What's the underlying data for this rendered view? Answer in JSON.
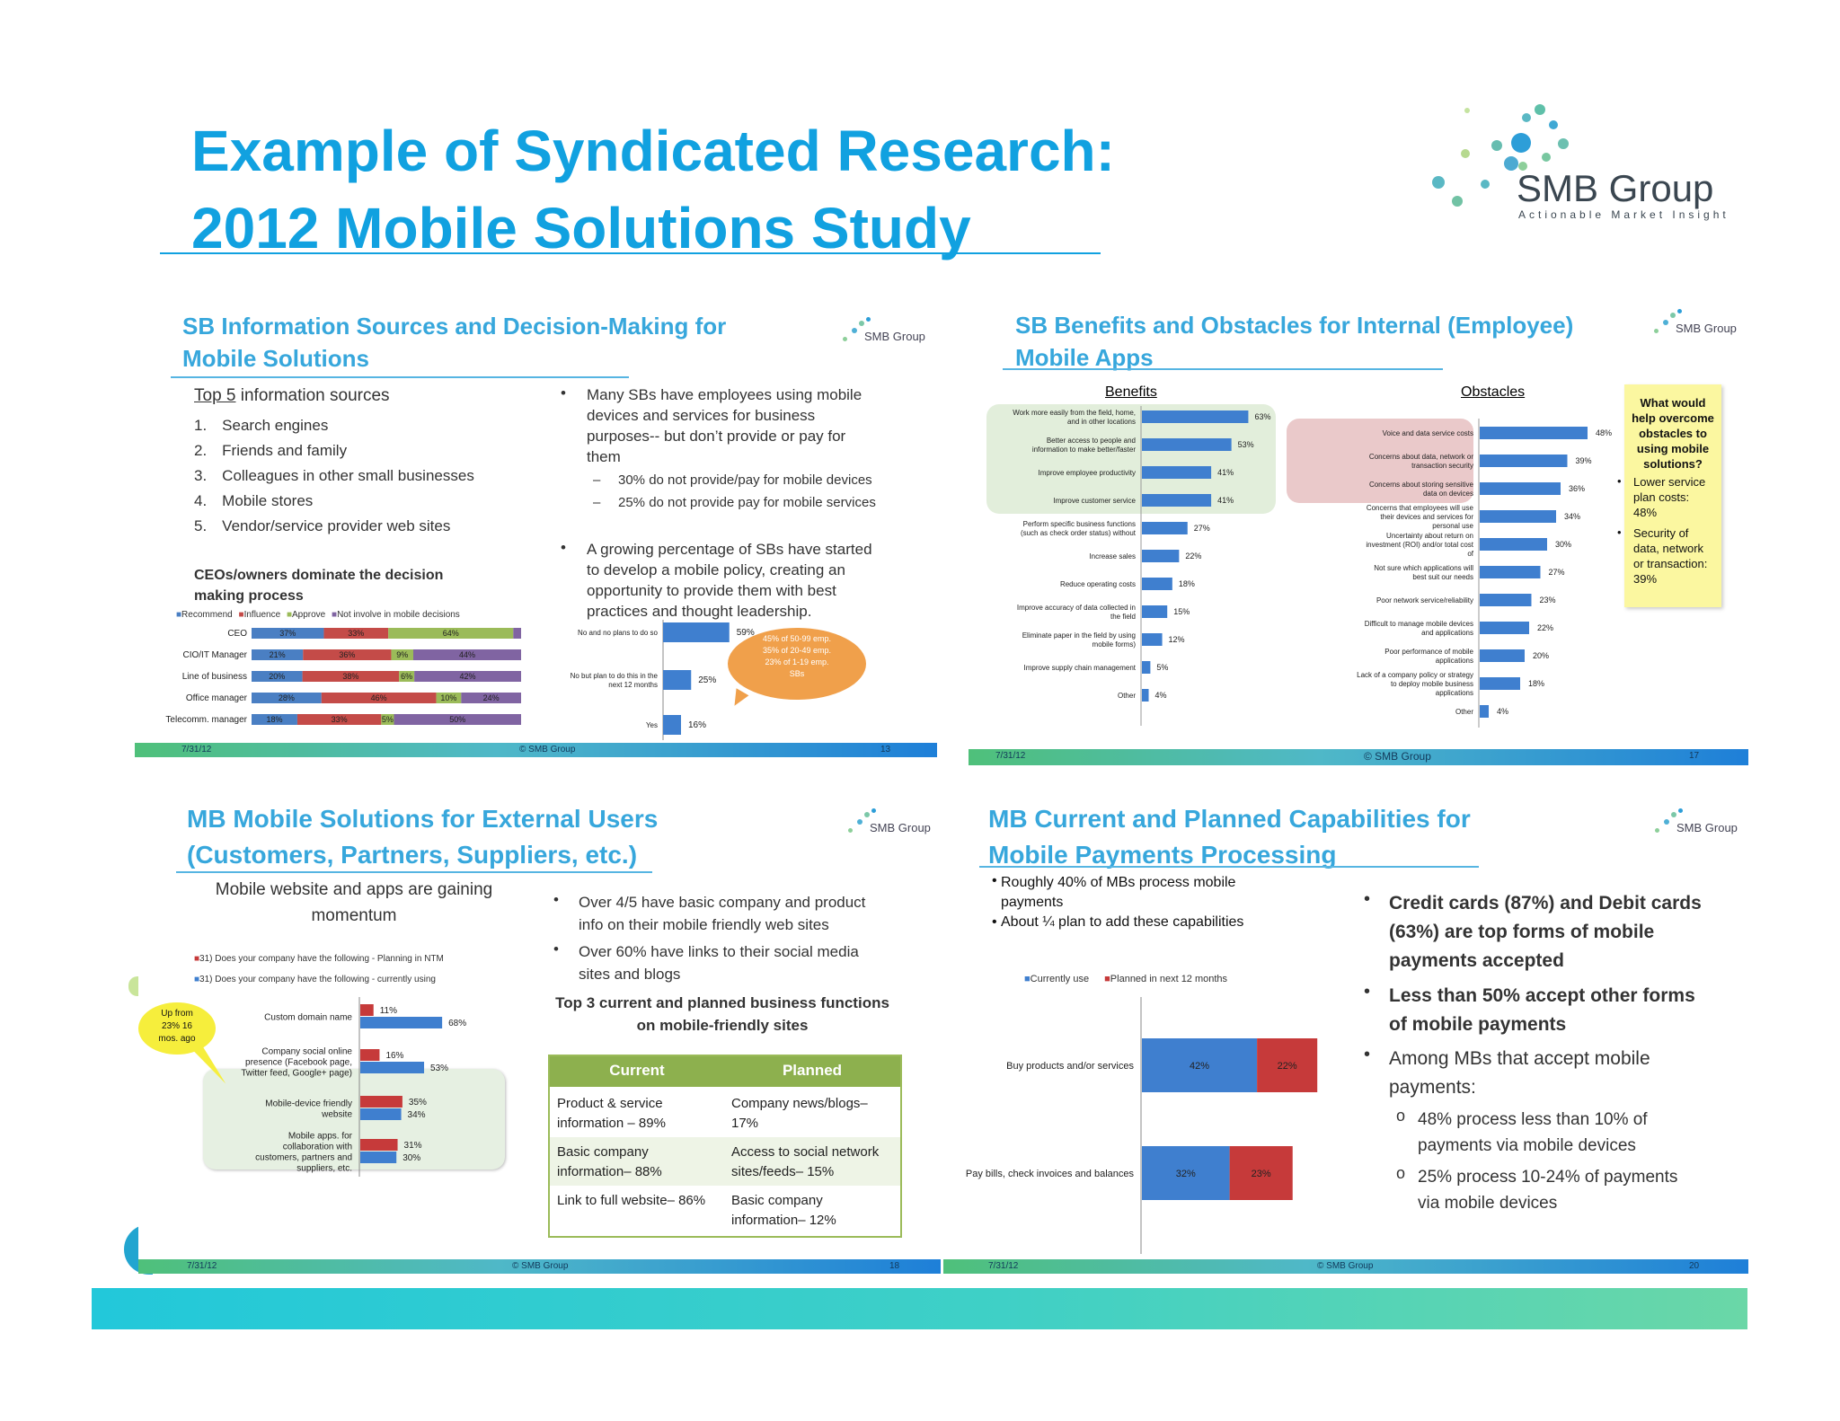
{
  "title": {
    "line1": "Example of Syndicated Research:",
    "line2": "2012 Mobile Solutions Study"
  },
  "logo": {
    "name": "SMB Group",
    "tagline": "Actionable Market Insight"
  },
  "slide1": {
    "title1": "SB Information Sources and Decision-Making for",
    "title2": "Mobile Solutions",
    "logo": "SMB Group",
    "list_heading_underlined": "Top 5",
    "list_heading_rest": " information sources",
    "list": [
      "1. Search engines",
      "2. Friends and family",
      "3. Colleagues in other small businesses",
      "4. Mobile stores",
      "5. Vendor/service provider web sites"
    ],
    "bullet1": [
      "Many SBs have employees using mobile",
      "devices and services for business",
      "purposes-- but don’t provide or pay for",
      "them"
    ],
    "sub1": "30% do not provide/pay for mobile devices",
    "sub2": "25% do not provide pay for mobile services",
    "bullet2": [
      "A growing percentage of SBs have started",
      "to develop a mobile policy, creating an",
      "opportunity to provide them with best",
      "practices and thought leadership."
    ],
    "ceo_heading1": "CEOs/owners dominate the decision",
    "ceo_heading2": "making process",
    "legend": [
      "Recommend",
      "Influence",
      "Approve",
      "Not involve in mobile decisions"
    ],
    "callout": [
      "45% of 50-99 emp.",
      "35% of 20-49 emp.",
      "23% of 1-19 emp.",
      "SBs"
    ],
    "footer_date": "7/31/12",
    "footer_center": "© SMB Group",
    "footer_page": "13"
  },
  "slide2": {
    "title1": "SB Benefits and Obstacles for Internal (Employee)",
    "title2": "Mobile Apps",
    "logo": "SMB Group",
    "benefits_heading": "Benefits",
    "obstacles_heading": "Obstacles",
    "note": [
      "What would",
      "help overcome",
      "obstacles to",
      "using mobile",
      "solutions?"
    ],
    "note_b1": [
      "Lower service",
      "plan costs:",
      "48%"
    ],
    "note_b2": [
      "Security of",
      "data, network",
      "or transaction:",
      "39%"
    ],
    "footer_date": "7/31/12",
    "footer_center": "© SMB Group",
    "footer_page": "17"
  },
  "slide3": {
    "title1": "MB Mobile Solutions for External Users",
    "title2": "(Customers, Partners, Suppliers, etc.)",
    "logo": "SMB Group",
    "subtitle1": "Mobile website and apps are gaining",
    "subtitle2": "momentum",
    "legend": [
      "31) Does your company have the following - Planning in NTM",
      "31) Does your company have the following - currently using"
    ],
    "callout": [
      "Up from",
      "23% 16",
      "mos. ago"
    ],
    "bullet1": [
      "Over 4/5 have basic company and product",
      "info on their mobile friendly web sites"
    ],
    "bullet2": [
      "Over 60% have links to their social media",
      "sites and blogs"
    ],
    "top3_1": "Top 3 current and planned business functions",
    "top3_2": "on mobile-friendly sites",
    "table": {
      "headers": [
        "Current",
        "Planned"
      ],
      "rows": [
        [
          [
            "Product & service",
            "information – 89%"
          ],
          [
            "Company news/blogs–",
            "17%"
          ]
        ],
        [
          [
            "Basic company",
            "information– 88%"
          ],
          [
            "Access to social network",
            "sites/feeds– 15%"
          ]
        ],
        [
          [
            "Link to full website– 86%"
          ],
          [
            "Basic company",
            "information– 12%"
          ]
        ]
      ]
    },
    "footer_date": "7/31/12",
    "footer_center": "© SMB Group",
    "footer_page": "18"
  },
  "slide4": {
    "title1": "MB Current and Planned Capabilities for",
    "title2": "Mobile Payments Processing",
    "logo": "SMB Group",
    "bullet1": [
      "Roughly 40% of MBs process mobile",
      "payments"
    ],
    "bullet2": [
      "About ¼ plan to add these capabilities"
    ],
    "legend": [
      "Currently use",
      "Planned in next 12 months"
    ],
    "right1": [
      "Credit cards (87%) and Debit cards",
      "(63%) are top forms of mobile",
      "payments accepted"
    ],
    "right2": [
      "Less than 50% accept other forms",
      "of mobile payments"
    ],
    "right3": [
      "Among MBs that accept mobile",
      "payments:"
    ],
    "sub1": [
      "48% process less than 10% of",
      "payments via mobile devices"
    ],
    "sub2": [
      "25% process 10-24% of payments",
      "via mobile devices"
    ],
    "footer_date": "7/31/12",
    "footer_center": "© SMB Group",
    "footer_page": "20"
  },
  "chart_data": [
    {
      "type": "bar",
      "orientation": "horizontal",
      "stacked": true,
      "categories": [
        "CEO",
        "CIO/IT Manager",
        "Line of business",
        "Office manager",
        "Telecomm. manager"
      ],
      "series": [
        {
          "name": "Recommend",
          "values": [
            37,
            21,
            20,
            28,
            18
          ],
          "color": "#4a7fc3"
        },
        {
          "name": "Influence",
          "values": [
            33,
            36,
            38,
            46,
            33
          ],
          "color": "#c44b48"
        },
        {
          "name": "Approve",
          "values": [
            64,
            9,
            6,
            10,
            5
          ],
          "color": "#9bbb59"
        },
        {
          "name": "Not involve in mobile decisions",
          "values": [
            4,
            44,
            42,
            24,
            50
          ],
          "color": "#8064a2"
        }
      ]
    },
    {
      "type": "bar",
      "orientation": "horizontal",
      "categories": [
        "No and no plans to do so",
        "No but plan to do this in the next 12 months",
        "Yes"
      ],
      "values": [
        59,
        25,
        16
      ]
    },
    {
      "type": "bar",
      "orientation": "horizontal",
      "title": "Benefits",
      "categories": [
        "Work more easily from the field, home, and in other locations",
        "Better access to people and information to make better/faster",
        "Improve employee productivity",
        "Improve customer service",
        "Perform specific business functions (such as check order status) without",
        "Increase sales",
        "Reduce operating costs",
        "Improve accuracy of data collected in the field",
        "Eliminate paper in the field by using mobile forms)",
        "Improve supply chain management",
        "Other"
      ],
      "values": [
        63,
        53,
        41,
        41,
        27,
        22,
        18,
        15,
        12,
        5,
        4
      ]
    },
    {
      "type": "bar",
      "orientation": "horizontal",
      "title": "Obstacles",
      "categories": [
        "Voice and data service costs",
        "Concerns about data, network or transaction security",
        "Concerns about storing sensitive data on devices",
        "Concerns that employees will use their devices and services for personal use",
        "Uncertainty about return on investment (ROI) and/or total cost of",
        "Not sure which applications will best suit our needs",
        "Poor network service/reliability",
        "Difficult to manage mobile devices and applications",
        "Poor performance of mobile applications",
        "Lack of a company policy or strategy to deploy mobile business applications",
        "Other"
      ],
      "values": [
        48,
        39,
        36,
        34,
        30,
        27,
        23,
        22,
        20,
        18,
        4
      ]
    },
    {
      "type": "bar",
      "orientation": "horizontal",
      "categories": [
        "Custom domain name",
        "Company social online presence (Facebook page, Twitter feed, Google+ page)",
        "Mobile-device friendly website",
        "Mobile apps. for collaboration with customers, partners and suppliers, etc."
      ],
      "series": [
        {
          "name": "31) Does your company have the following - Planning in NTM",
          "values": [
            11,
            16,
            35,
            31
          ],
          "color": "#c63a3a"
        },
        {
          "name": "31) Does your company have the following - currently using",
          "values": [
            68,
            53,
            34,
            30
          ],
          "color": "#3f7fcf"
        }
      ]
    },
    {
      "type": "bar",
      "orientation": "horizontal",
      "stacked": true,
      "categories": [
        "Buy products and/or services",
        "Pay bills, check invoices and balances"
      ],
      "series": [
        {
          "name": "Currently use",
          "values": [
            42,
            32
          ],
          "color": "#3f7fcf"
        },
        {
          "name": "Planned in next 12 months",
          "values": [
            22,
            23
          ],
          "color": "#c63a3a"
        }
      ]
    }
  ]
}
